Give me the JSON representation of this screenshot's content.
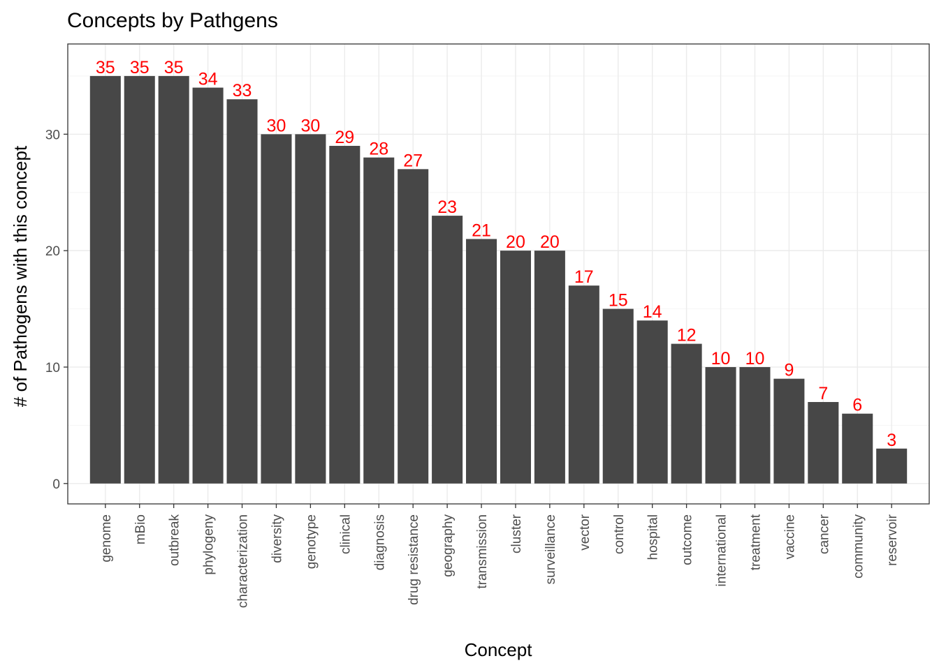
{
  "chart_data": {
    "type": "bar",
    "title": "Concepts by Pathgens",
    "xlabel": "Concept",
    "ylabel": "# of Pathogens with this concept",
    "categories": [
      "genome",
      "mBio",
      "outbreak",
      "phylogeny",
      "characterization",
      "diversity",
      "genotype",
      "clinical",
      "diagnosis",
      "drug resistance",
      "geography",
      "transmission",
      "cluster",
      "surveillance",
      "vector",
      "control",
      "hospital",
      "outcome",
      "international",
      "treatment",
      "vaccine",
      "cancer",
      "community",
      "reservoir"
    ],
    "values": [
      35,
      35,
      35,
      34,
      33,
      30,
      30,
      29,
      28,
      27,
      23,
      21,
      20,
      20,
      17,
      15,
      14,
      12,
      10,
      10,
      9,
      7,
      6,
      3
    ],
    "ylim": [
      -1.75,
      37.75
    ],
    "yticks": [
      0,
      10,
      20,
      30
    ],
    "grid": true,
    "legend": "none",
    "colors": {
      "bar": "#474747",
      "value_label": "#ff0000",
      "grid_major": "#ebebeb",
      "grid_minor": "#f5f5f5",
      "panel_border": "#333333"
    }
  }
}
